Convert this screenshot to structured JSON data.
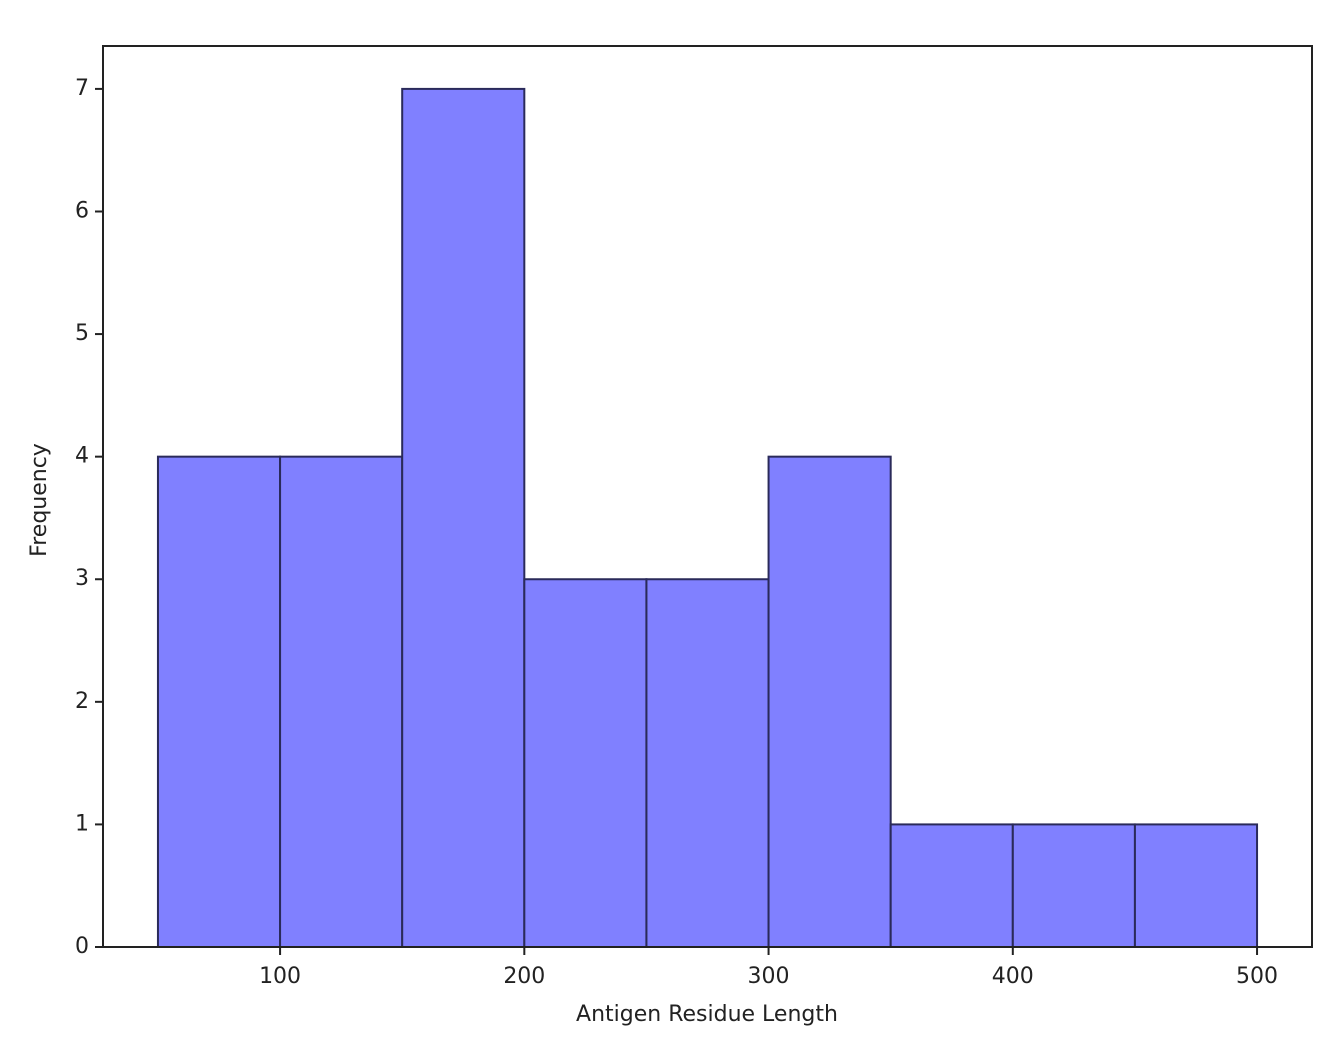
{
  "chart_data": {
    "type": "histogram",
    "x_label": "Antigen Residue Length",
    "y_label": "Frequency",
    "bins": [
      50,
      100,
      150,
      200,
      250,
      300,
      350,
      400,
      450,
      500
    ],
    "values": [
      4,
      4,
      7,
      3,
      3,
      4,
      1,
      1,
      1
    ],
    "color": "#8080ff",
    "edgecolor": "#2a2a5a",
    "xlim": [
      27.5,
      522.5
    ],
    "ylim": [
      0,
      7.35
    ],
    "xticks": [
      100,
      200,
      300,
      400,
      500
    ],
    "yticks": [
      0,
      1,
      2,
      3,
      4,
      5,
      6,
      7
    ]
  }
}
